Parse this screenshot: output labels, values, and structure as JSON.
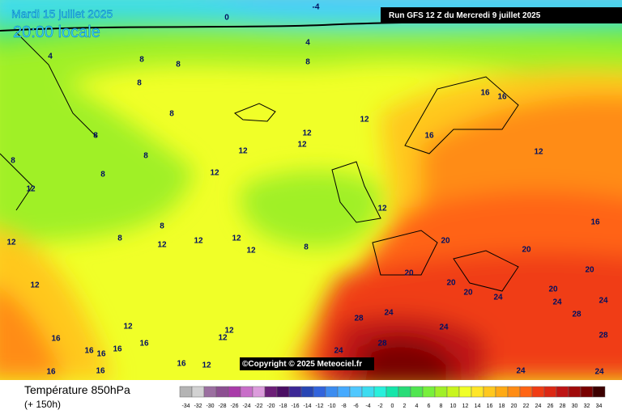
{
  "header": {
    "date": "Mardi 15 juillet 2025",
    "time": "20:00 locale",
    "run": "Run GFS 12 Z du Mercredi 9 juillet 2025"
  },
  "copyright": "©Copyright © 2025 Meteociel.fr",
  "footer": {
    "title": "Température 850hPa",
    "lead": "(+ 150h)"
  },
  "legend": {
    "values": [
      -34,
      -32,
      -30,
      -28,
      -26,
      -24,
      -22,
      -20,
      -18,
      -16,
      -14,
      -12,
      -10,
      -8,
      -6,
      -4,
      -2,
      0,
      2,
      4,
      6,
      8,
      10,
      12,
      14,
      16,
      18,
      20,
      22,
      24,
      26,
      28,
      30,
      32,
      34
    ],
    "colors": [
      "#b4b4b4",
      "#d2d2d2",
      "#9b6fa0",
      "#8c4f91",
      "#a93ba9",
      "#c86ec8",
      "#dc9bdc",
      "#6d1f78",
      "#4b0f64",
      "#3c2896",
      "#2846b4",
      "#3264dc",
      "#3c8cf0",
      "#46aaff",
      "#50c8ff",
      "#3cdcf0",
      "#28f0dc",
      "#14e6aa",
      "#28dc78",
      "#50e650",
      "#78f03c",
      "#a0f028",
      "#c8f51e",
      "#f0ff28",
      "#ffe628",
      "#ffc81e",
      "#ffaa14",
      "#ff8c14",
      "#ff6414",
      "#f03c14",
      "#dc2814",
      "#be1414",
      "#a00a0a",
      "#780000",
      "#3c0000"
    ]
  },
  "contour_labels": [
    0,
    -4,
    4,
    8,
    8,
    4,
    8,
    8,
    8,
    8,
    8,
    8,
    8,
    12,
    8,
    8,
    12,
    12,
    12,
    12,
    12,
    12,
    8,
    12,
    12,
    12,
    12,
    12,
    12,
    16,
    16,
    16,
    12,
    16,
    20,
    20,
    20,
    20,
    20,
    20,
    20,
    24,
    24,
    24,
    24,
    28,
    24,
    24,
    28,
    28,
    28,
    24,
    24,
    12,
    12,
    12,
    16,
    16,
    16,
    16,
    16,
    16,
    16,
    16,
    12
  ]
}
